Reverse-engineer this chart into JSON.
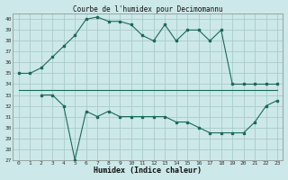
{
  "title": "Courbe de l'humidex pour Decimomannu",
  "xlabel": "Humidex (Indice chaleur)",
  "bg_color": "#cce8e8",
  "grid_color": "#aacccc",
  "line_color": "#1a6b5a",
  "xlim": [
    -0.5,
    23.5
  ],
  "ylim": [
    27,
    40.5
  ],
  "yticks": [
    27,
    28,
    29,
    30,
    31,
    32,
    33,
    34,
    35,
    36,
    37,
    38,
    39,
    40
  ],
  "xticks": [
    0,
    1,
    2,
    3,
    4,
    5,
    6,
    7,
    8,
    9,
    10,
    11,
    12,
    13,
    14,
    15,
    16,
    17,
    18,
    19,
    20,
    21,
    22,
    23
  ],
  "line1_x": [
    0,
    1,
    2,
    3,
    4,
    5,
    6,
    7,
    8,
    9,
    10,
    11,
    12,
    13,
    14,
    15,
    16,
    17,
    18,
    19,
    20,
    21,
    22,
    23
  ],
  "line1_y": [
    35,
    35,
    35.5,
    36.5,
    37.5,
    38.5,
    40,
    40.2,
    39.8,
    39.8,
    39.5,
    38.5,
    38,
    39.5,
    38,
    39,
    39,
    38,
    39,
    34,
    34,
    34,
    34,
    34
  ],
  "line2_x": [
    0,
    1,
    2,
    3,
    4,
    5,
    6,
    7,
    8,
    9,
    10,
    11,
    12,
    13,
    14,
    15,
    16,
    17,
    18,
    19,
    20,
    21,
    22,
    23
  ],
  "line2_y": [
    33.5,
    33.5,
    33.5,
    33.5,
    33.5,
    33.5,
    33.5,
    33.5,
    33.5,
    33.5,
    33.5,
    33.5,
    33.5,
    33.5,
    33.5,
    33.5,
    33.5,
    33.5,
    33.5,
    33.5,
    33.5,
    33.5,
    33.5,
    33.5
  ],
  "line3_x": [
    2,
    3,
    4,
    5,
    6,
    7,
    8,
    9,
    10,
    11,
    12,
    13,
    14,
    15,
    16,
    17,
    18,
    19,
    20,
    21,
    22,
    23
  ],
  "line3_y": [
    33,
    33,
    32,
    27,
    31.5,
    31,
    31.5,
    31,
    31,
    31,
    31,
    31,
    30.5,
    30.5,
    30,
    29.5,
    29.5,
    29.5,
    29.5,
    30.5,
    32,
    32.5
  ]
}
